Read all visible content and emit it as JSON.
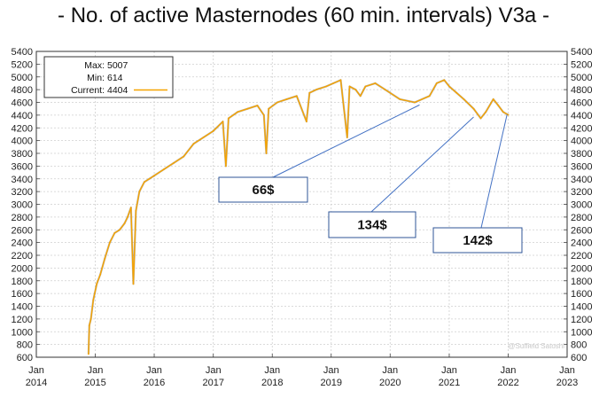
{
  "chart_data": {
    "type": "line",
    "title": "- No. of active Masternodes (60 min. intervals) V3a -",
    "ylim": [
      600,
      5400
    ],
    "y_ticks": [
      600,
      800,
      1000,
      1200,
      1400,
      1600,
      1800,
      2000,
      2200,
      2400,
      2600,
      2800,
      3000,
      3200,
      3400,
      3600,
      3800,
      4000,
      4200,
      4400,
      4600,
      4800,
      5000,
      5200,
      5400
    ],
    "xlim": [
      "2014-01-01",
      "2023-01-01"
    ],
    "x_ticks": [
      {
        "date": "2014-01-01",
        "month": "Jan",
        "year": "2014"
      },
      {
        "date": "2015-01-01",
        "month": "Jan",
        "year": "2015"
      },
      {
        "date": "2016-01-01",
        "month": "Jan",
        "year": "2016"
      },
      {
        "date": "2017-01-01",
        "month": "Jan",
        "year": "2017"
      },
      {
        "date": "2018-01-01",
        "month": "Jan",
        "year": "2018"
      },
      {
        "date": "2019-01-01",
        "month": "Jan",
        "year": "2019"
      },
      {
        "date": "2020-01-01",
        "month": "Jan",
        "year": "2020"
      },
      {
        "date": "2021-01-01",
        "month": "Jan",
        "year": "2021"
      },
      {
        "date": "2022-01-01",
        "month": "Jan",
        "year": "2022"
      },
      {
        "date": "2023-01-01",
        "month": "Jan",
        "year": "2023"
      }
    ],
    "grid": true,
    "legend": {
      "placement": "top-left",
      "max_label": "Max:",
      "max_value": "5007",
      "min_label": "Min:",
      "min_value": "614",
      "current_label": "Current:",
      "current_value": "4404"
    },
    "series": [
      {
        "color": "#f5a300",
        "points": [
          [
            "2014-11-20",
            650
          ],
          [
            "2014-11-25",
            1100
          ],
          [
            "2014-12-05",
            1200
          ],
          [
            "2014-12-20",
            1500
          ],
          [
            "2015-01-10",
            1750
          ],
          [
            "2015-02-01",
            1900
          ],
          [
            "2015-03-01",
            2150
          ],
          [
            "2015-04-01",
            2400
          ],
          [
            "2015-05-01",
            2550
          ],
          [
            "2015-06-01",
            2600
          ],
          [
            "2015-07-01",
            2700
          ],
          [
            "2015-07-20",
            2800
          ],
          [
            "2015-08-10",
            2950
          ],
          [
            "2015-08-25",
            1750
          ],
          [
            "2015-09-10",
            2900
          ],
          [
            "2015-10-01",
            3200
          ],
          [
            "2015-11-01",
            3350
          ],
          [
            "2015-12-01",
            3400
          ],
          [
            "2016-01-01",
            3450
          ],
          [
            "2016-03-01",
            3550
          ],
          [
            "2016-05-01",
            3650
          ],
          [
            "2016-07-01",
            3750
          ],
          [
            "2016-09-01",
            3950
          ],
          [
            "2016-11-01",
            4050
          ],
          [
            "2017-01-01",
            4150
          ],
          [
            "2017-03-01",
            4300
          ],
          [
            "2017-03-20",
            3600
          ],
          [
            "2017-04-05",
            4350
          ],
          [
            "2017-06-01",
            4450
          ],
          [
            "2017-08-01",
            4500
          ],
          [
            "2017-10-01",
            4550
          ],
          [
            "2017-11-10",
            4400
          ],
          [
            "2017-11-25",
            3800
          ],
          [
            "2017-12-10",
            4500
          ],
          [
            "2018-02-01",
            4600
          ],
          [
            "2018-04-01",
            4650
          ],
          [
            "2018-06-01",
            4700
          ],
          [
            "2018-08-01",
            4300
          ],
          [
            "2018-08-20",
            4750
          ],
          [
            "2018-10-01",
            4800
          ],
          [
            "2018-12-01",
            4850
          ],
          [
            "2019-01-15",
            4900
          ],
          [
            "2019-03-01",
            4950
          ],
          [
            "2019-04-10",
            4050
          ],
          [
            "2019-04-25",
            4850
          ],
          [
            "2019-06-01",
            4800
          ],
          [
            "2019-07-01",
            4700
          ],
          [
            "2019-08-01",
            4850
          ],
          [
            "2019-10-01",
            4900
          ],
          [
            "2019-12-01",
            4800
          ],
          [
            "2020-03-01",
            4650
          ],
          [
            "2020-06-01",
            4600
          ],
          [
            "2020-09-01",
            4700
          ],
          [
            "2020-10-15",
            4900
          ],
          [
            "2020-12-01",
            4950
          ],
          [
            "2021-01-01",
            4850
          ],
          [
            "2021-02-15",
            4750
          ],
          [
            "2021-04-01",
            4650
          ],
          [
            "2021-06-01",
            4500
          ],
          [
            "2021-07-15",
            4350
          ],
          [
            "2021-08-15",
            4450
          ],
          [
            "2021-10-01",
            4650
          ],
          [
            "2021-11-01",
            4550
          ],
          [
            "2021-12-01",
            4450
          ],
          [
            "2022-01-01",
            4404
          ]
        ]
      }
    ],
    "annotations": [
      {
        "text": "66$",
        "target": [
          "2020-07-01",
          4560
        ]
      },
      {
        "text": "134$",
        "target": [
          "2021-06-01",
          4370
        ]
      },
      {
        "text": "142$",
        "target": [
          "2021-12-25",
          4410
        ]
      }
    ],
    "watermark": "@Suffield Satoshi"
  }
}
